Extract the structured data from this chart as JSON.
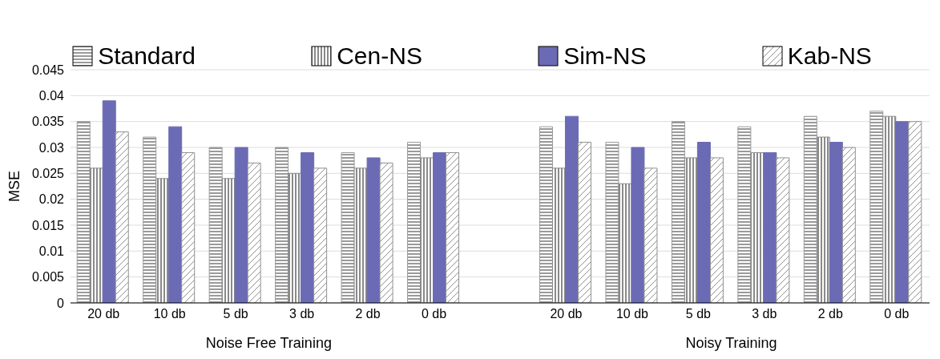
{
  "chart_data": {
    "type": "bar",
    "ylabel": "MSE",
    "categories": [
      "20 db",
      "10 db",
      "5 db",
      "3 db",
      "2 db",
      "0 db",
      null,
      "20 db",
      "10 db",
      "5 db",
      "3 db",
      "2 db",
      "0 db"
    ],
    "series": [
      {
        "name": "Standard",
        "color": "#9a9a9a",
        "values": [
          0.035,
          0.032,
          0.03,
          0.03,
          0.029,
          0.031,
          null,
          0.034,
          0.031,
          0.035,
          0.034,
          0.036,
          0.037
        ]
      },
      {
        "name": "Cen-NS",
        "color": "#8a8a8a",
        "values": [
          0.026,
          0.024,
          0.024,
          0.025,
          0.026,
          0.028,
          null,
          0.026,
          0.023,
          0.028,
          0.029,
          0.032,
          0.036
        ]
      },
      {
        "name": "Sim-NS",
        "color": "#6b6bb5",
        "values": [
          0.039,
          0.034,
          0.03,
          0.029,
          0.028,
          0.029,
          null,
          0.036,
          0.03,
          0.031,
          0.029,
          0.031,
          0.035
        ]
      },
      {
        "name": "Kab-NS",
        "color": "#909090",
        "values": [
          0.033,
          0.029,
          0.027,
          0.026,
          0.027,
          0.029,
          null,
          0.031,
          0.026,
          0.028,
          0.028,
          0.03,
          0.035
        ]
      }
    ],
    "ylim": [
      0,
      0.045
    ],
    "yticks": [
      0,
      0.005,
      0.01,
      0.015,
      0.02,
      0.025,
      0.03,
      0.035,
      0.04,
      0.045
    ],
    "grid": "y",
    "legend": "top",
    "annotations": [
      "Noise Free Training",
      "Noisy Training"
    ]
  }
}
